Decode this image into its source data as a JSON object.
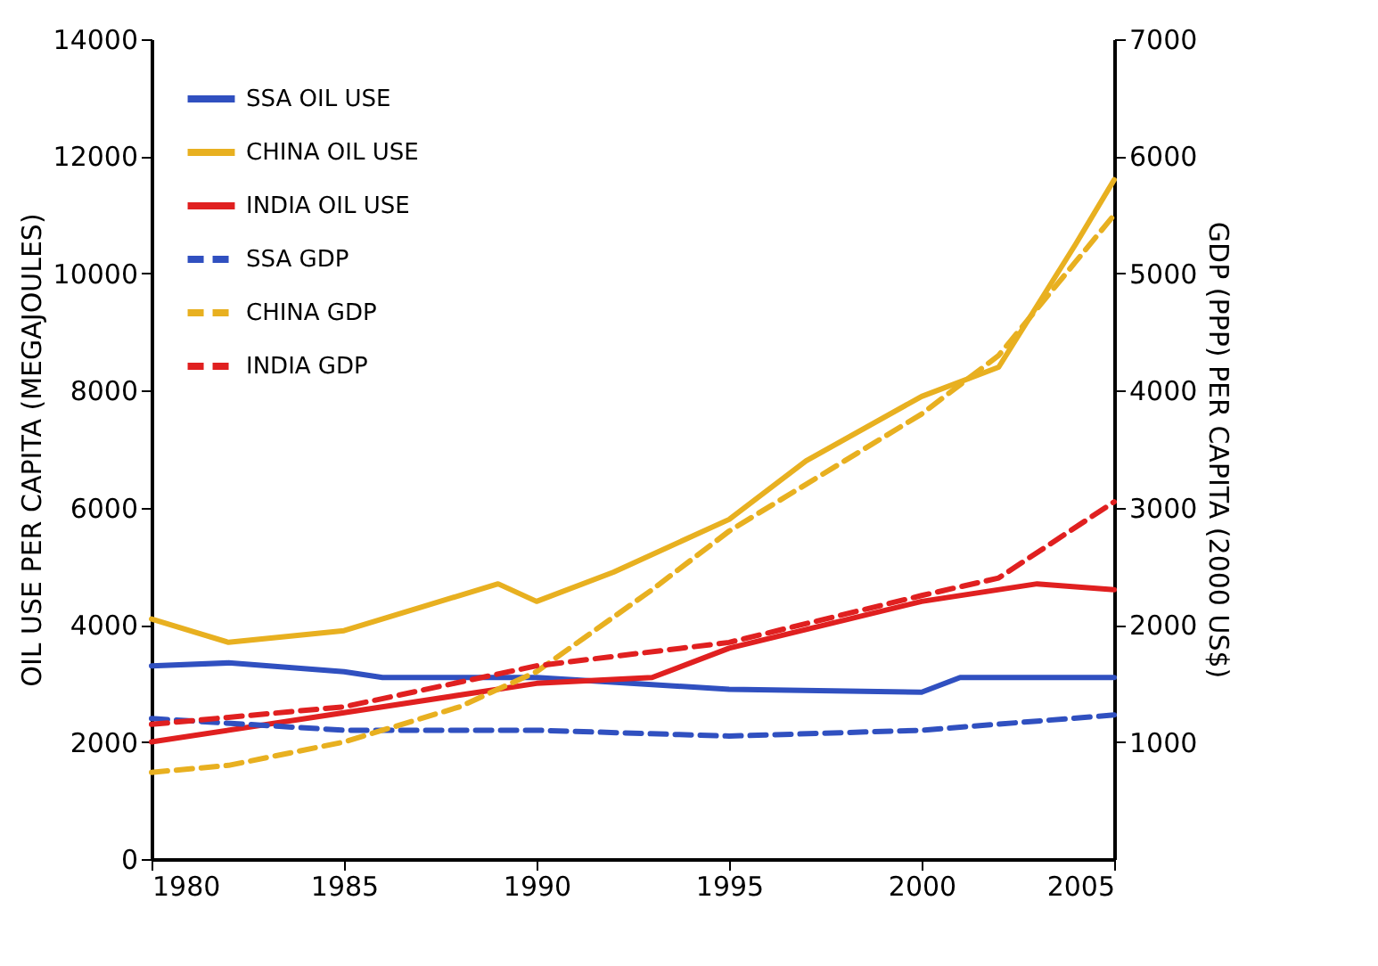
{
  "chart_data": {
    "type": "line",
    "xlabel": null,
    "ylabel": "OIL USE PER CAPITA (MEGAJOULES)",
    "y2label": "GDP (PPP) PER CAPITA (2000 US$)",
    "xlim": [
      1980,
      2005
    ],
    "xticks": [
      1980,
      1985,
      1990,
      1995,
      2000,
      2005
    ],
    "ylim": [
      0,
      14000
    ],
    "yticks": [
      0,
      2000,
      4000,
      6000,
      8000,
      10000,
      12000,
      14000
    ],
    "y2lim": [
      0,
      7000
    ],
    "y2ticks": [
      1000,
      2000,
      3000,
      4000,
      5000,
      6000,
      7000
    ],
    "grid": false,
    "legend": "top left",
    "marker": "none",
    "series": [
      {
        "name": "SSA OIL USE",
        "color": "#3050c0",
        "line_style": "solid",
        "x": [
          1980,
          1982,
          1985,
          1986,
          1990,
          1995,
          2000,
          2001,
          2005
        ],
        "values": [
          3300,
          3350,
          3200,
          3100,
          3100,
          2900,
          2850,
          3100,
          3100
        ]
      },
      {
        "name": "CHINA OIL USE",
        "color": "#e8b020",
        "line_style": "solid",
        "x": [
          1980,
          1982,
          1985,
          1987,
          1989,
          1990,
          1992,
          1995,
          1997,
          2000,
          2002,
          2004,
          2005
        ],
        "values": [
          4100,
          3700,
          3900,
          4300,
          4700,
          4400,
          4900,
          5800,
          6800,
          7900,
          8400,
          10500,
          11600
        ]
      },
      {
        "name": "INDIA OIL USE",
        "color": "#e02020",
        "line_style": "solid",
        "x": [
          1980,
          1985,
          1990,
          1993,
          1995,
          2000,
          2003,
          2005
        ],
        "values": [
          2000,
          2500,
          3000,
          3100,
          3600,
          4400,
          4700,
          4600
        ]
      },
      {
        "name": "SSA GDP",
        "color": "#3050c0",
        "line_style": "dashed",
        "axis": "y2",
        "x": [
          1980,
          1985,
          1990,
          1995,
          2000,
          2005
        ],
        "values": [
          1200,
          1100,
          1100,
          1050,
          1100,
          1230
        ]
      },
      {
        "name": "CHINA GDP",
        "color": "#e8b020",
        "line_style": "dashed",
        "axis": "y2",
        "x": [
          1980,
          1982,
          1985,
          1988,
          1990,
          1993,
          1995,
          1998,
          2000,
          2002,
          2004,
          2005
        ],
        "values": [
          740,
          800,
          1000,
          1300,
          1600,
          2300,
          2800,
          3400,
          3800,
          4300,
          5100,
          5500
        ]
      },
      {
        "name": "INDIA GDP",
        "color": "#e02020",
        "line_style": "dashed",
        "axis": "y2",
        "x": [
          1980,
          1985,
          1990,
          1995,
          2000,
          2002,
          2005
        ],
        "values": [
          1150,
          1300,
          1650,
          1850,
          2250,
          2400,
          3050
        ]
      }
    ]
  }
}
